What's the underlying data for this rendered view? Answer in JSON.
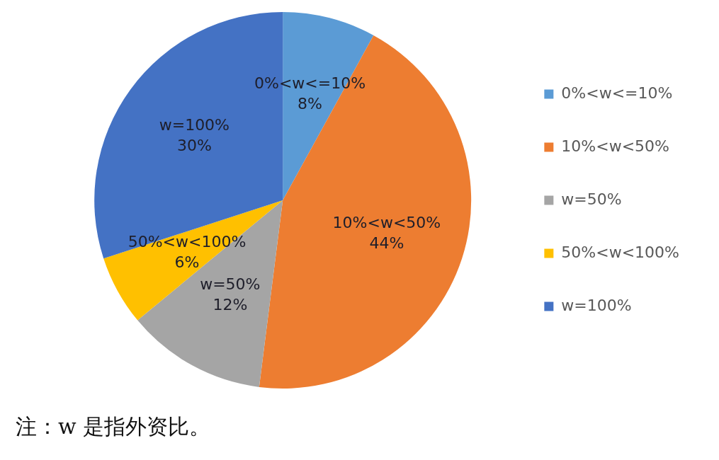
{
  "chart_data": {
    "type": "pie",
    "categories": [
      "0%<w<=10%",
      "10%<w<50%",
      "w=50%",
      "50%<w<100%",
      "w=100%"
    ],
    "values": [
      8,
      44,
      12,
      6,
      30
    ],
    "colors": [
      "#5b9bd5",
      "#ed7d31",
      "#a5a5a5",
      "#ffc000",
      "#4472c4"
    ],
    "value_labels": [
      "8%",
      "44%",
      "12%",
      "6%",
      "30%"
    ],
    "legend": "right",
    "annotations": [
      "注：w 是指外资比。"
    ]
  }
}
